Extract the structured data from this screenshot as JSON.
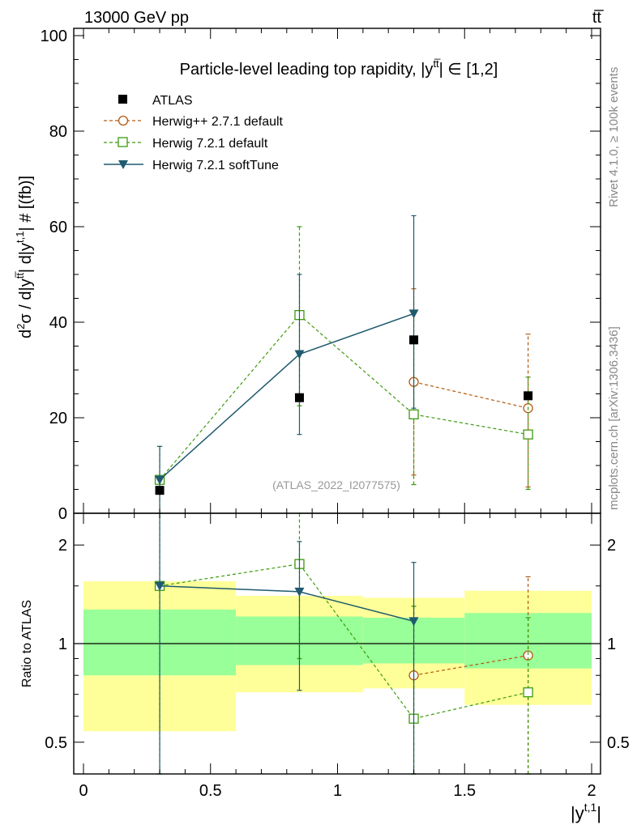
{
  "header": {
    "energy_label": "13000 GeV pp",
    "process_label": "tt̅"
  },
  "side_text": {
    "rivet": "Rivet 4.1.0, ≥ 100k events",
    "mcplots": "mcplots.cern.ch [arXiv:1306.3436]"
  },
  "colors": {
    "atlas": "#000000",
    "herwigpp": "#b35a10",
    "herwig721": "#3c9a0e",
    "softtune": "#1f5a6e",
    "band_yellow": "#ffff99",
    "band_green": "#99ff99"
  },
  "chart_data": [
    {
      "type": "scatter",
      "panel": "main",
      "title": "Particle-level leading top rapidity, |y̅tt̅| ∈ [1,2]",
      "title_text": "Particle-level leading top rapidity, |y",
      "title_sup": "tt̅",
      "title_tail": "| ∈ [1,2]",
      "watermark": "(ATLAS_2022_I2077575)",
      "ylabel": "d²σ / d|yᵗᵗ̅| d|yᵗʹ¹| # [(fb)]",
      "ylabel_parts": [
        "d",
        "2",
        "σ / d|y",
        "tt̅",
        "| d|y",
        "t,1",
        "| # [(fb)]"
      ],
      "ylim": [
        0,
        100
      ],
      "yticks": [
        0,
        20,
        40,
        60,
        80,
        100
      ],
      "ytick_labels": [
        "0",
        "20",
        "40",
        "60",
        "80",
        "100"
      ],
      "xlim": [
        -0.05,
        2.05
      ],
      "legend": [
        {
          "name": "ATLAS"
        },
        {
          "name": "Herwig++ 2.7.1 default"
        },
        {
          "name": "Herwig 7.2.1 default"
        },
        {
          "name": "Herwig 7.2.1 softTune"
        }
      ],
      "series": [
        {
          "name": "ATLAS",
          "x": [
            0.3,
            0.85,
            1.3,
            1.75
          ],
          "y": [
            4.8,
            24.2,
            36.3,
            24.6
          ]
        },
        {
          "name": "Herwig++ 2.7.1 default",
          "x": [
            1.3,
            1.75
          ],
          "y": [
            27.5,
            22.0
          ],
          "err_lo": [
            8.0,
            5.5
          ],
          "err_hi": [
            47.0,
            37.5
          ]
        },
        {
          "name": "Herwig 7.2.1 default",
          "x": [
            0.3,
            0.85,
            1.3,
            1.75
          ],
          "y": [
            7.0,
            41.5,
            20.7,
            16.5
          ],
          "err_lo": [
            0,
            22.5,
            6.0,
            5.0
          ],
          "err_hi": [
            14.0,
            60.0,
            37.0,
            28.5
          ]
        },
        {
          "name": "Herwig 7.2.1 softTune",
          "x": [
            0.3,
            0.85,
            1.3
          ],
          "y": [
            7.0,
            33.3,
            41.8
          ],
          "err_lo": [
            0,
            16.5,
            22.0
          ],
          "err_hi": [
            14.0,
            50.0,
            62.3
          ]
        }
      ]
    },
    {
      "type": "scatter",
      "panel": "ratio",
      "ylabel": "Ratio to ATLAS",
      "xlabel": "|yᵗʹ¹|",
      "xlabel_base": "|y",
      "xlabel_sup": "t,1",
      "xlabel_tail": "|",
      "yscale": "log",
      "ylim": [
        0.4,
        2.5
      ],
      "yticks": [
        0.5,
        1,
        2
      ],
      "ytick_labels": [
        "0.5",
        "1",
        "2"
      ],
      "xlim": [
        -0.05,
        2.05
      ],
      "xticks": [
        0,
        0.5,
        1,
        1.5,
        2
      ],
      "xtick_labels": [
        "0",
        "0.5",
        "1",
        "1.5",
        "2"
      ],
      "bins": [
        {
          "lo": 0.0,
          "hi": 0.6,
          "yellow": [
            0.54,
            1.55
          ],
          "green": [
            0.8,
            1.27
          ]
        },
        {
          "lo": 0.6,
          "hi": 1.1,
          "yellow": [
            0.71,
            1.4
          ],
          "green": [
            0.86,
            1.21
          ]
        },
        {
          "lo": 1.1,
          "hi": 1.5,
          "yellow": [
            0.73,
            1.38
          ],
          "green": [
            0.87,
            1.2
          ]
        },
        {
          "lo": 1.5,
          "hi": 2.0,
          "yellow": [
            0.65,
            1.45
          ],
          "green": [
            0.84,
            1.24
          ]
        }
      ],
      "series": [
        {
          "name": "Herwig++ 2.7.1 default",
          "x": [
            1.3,
            1.75
          ],
          "y": [
            0.8,
            0.92
          ],
          "err_lo": [
            0.2,
            0.2
          ],
          "err_hi": [
            1.3,
            1.6
          ]
        },
        {
          "name": "Herwig 7.2.1 default",
          "x": [
            0.3,
            0.85,
            1.3,
            1.75
          ],
          "y": [
            1.5,
            1.75,
            0.59,
            0.71
          ],
          "err_lo": [
            0.3,
            0.9,
            0.2,
            0.2
          ],
          "err_hi": [
            2.9,
            2.6,
            1.3,
            1.2
          ]
        },
        {
          "name": "Herwig 7.2.1 softTune",
          "x": [
            0.3,
            0.85,
            1.3
          ],
          "y": [
            1.5,
            1.44,
            1.17
          ],
          "err_lo": [
            0.3,
            0.72,
            0.2
          ],
          "err_hi": [
            2.9,
            2.05,
            1.77
          ]
        }
      ]
    }
  ]
}
